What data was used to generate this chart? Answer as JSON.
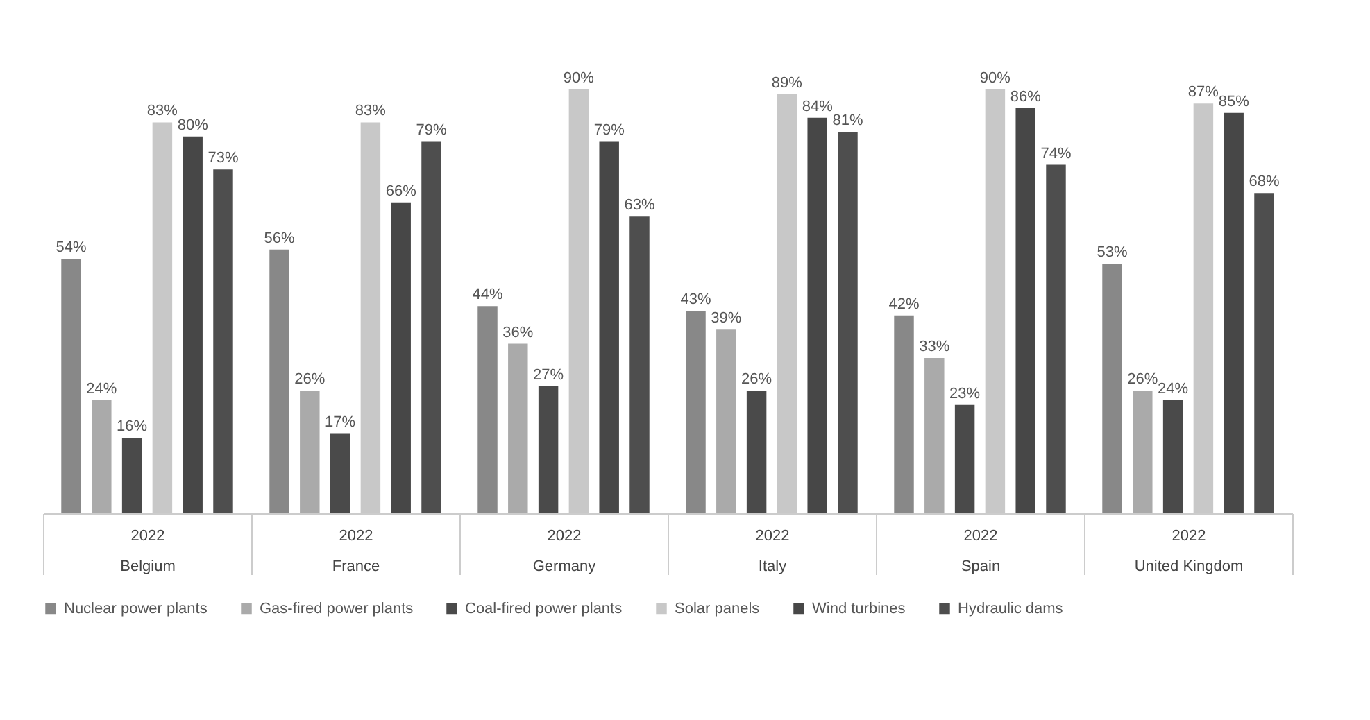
{
  "chart_data": {
    "type": "bar",
    "categories": [
      "2022\nBelgium",
      "2022\nFrance",
      "2022\nGermany",
      "2022\nItaly",
      "2022\nSpain",
      "2022\nUnited Kingdom"
    ],
    "series": [
      {
        "name": "Nuclear power plants",
        "color": "#888888",
        "values": [
          54,
          56,
          44,
          43,
          42,
          53
        ],
        "value_labels": [
          "54%",
          "56%",
          "44%",
          "43%",
          "42%",
          "53%"
        ]
      },
      {
        "name": "Gas-fired power plants",
        "color": "#aaaaaa",
        "values": [
          24,
          26,
          36,
          39,
          33,
          26
        ],
        "value_labels": [
          "24%",
          "26%",
          "36%",
          "39%",
          "33%",
          "26%"
        ]
      },
      {
        "name": "Coal-fired power plants",
        "color": "#4a4a4a",
        "values": [
          16,
          17,
          27,
          26,
          23,
          24
        ],
        "value_labels": [
          "16%",
          "17%",
          "27%",
          "26%",
          "23%",
          "24%"
        ]
      },
      {
        "name": "Solar panels",
        "color": "#c8c8c8",
        "values": [
          83,
          83,
          90,
          89,
          90,
          87
        ],
        "value_labels": [
          "83%",
          "83%",
          "90%",
          "89%",
          "90%",
          "87%"
        ]
      },
      {
        "name": "Wind turbines",
        "color": "#474747",
        "values": [
          80,
          66,
          79,
          84,
          86,
          85
        ],
        "value_labels": [
          "80%",
          "66%",
          "79%",
          "84%",
          "86%",
          "85%"
        ]
      },
      {
        "name": "Hydraulic dams",
        "color": "#4e4e4e",
        "values": [
          73,
          79,
          63,
          81,
          74,
          68
        ],
        "value_labels": [
          "73%",
          "79%",
          "63%",
          "81%",
          "74%",
          "68%"
        ]
      }
    ],
    "legend": "bottom",
    "grid": false
  }
}
